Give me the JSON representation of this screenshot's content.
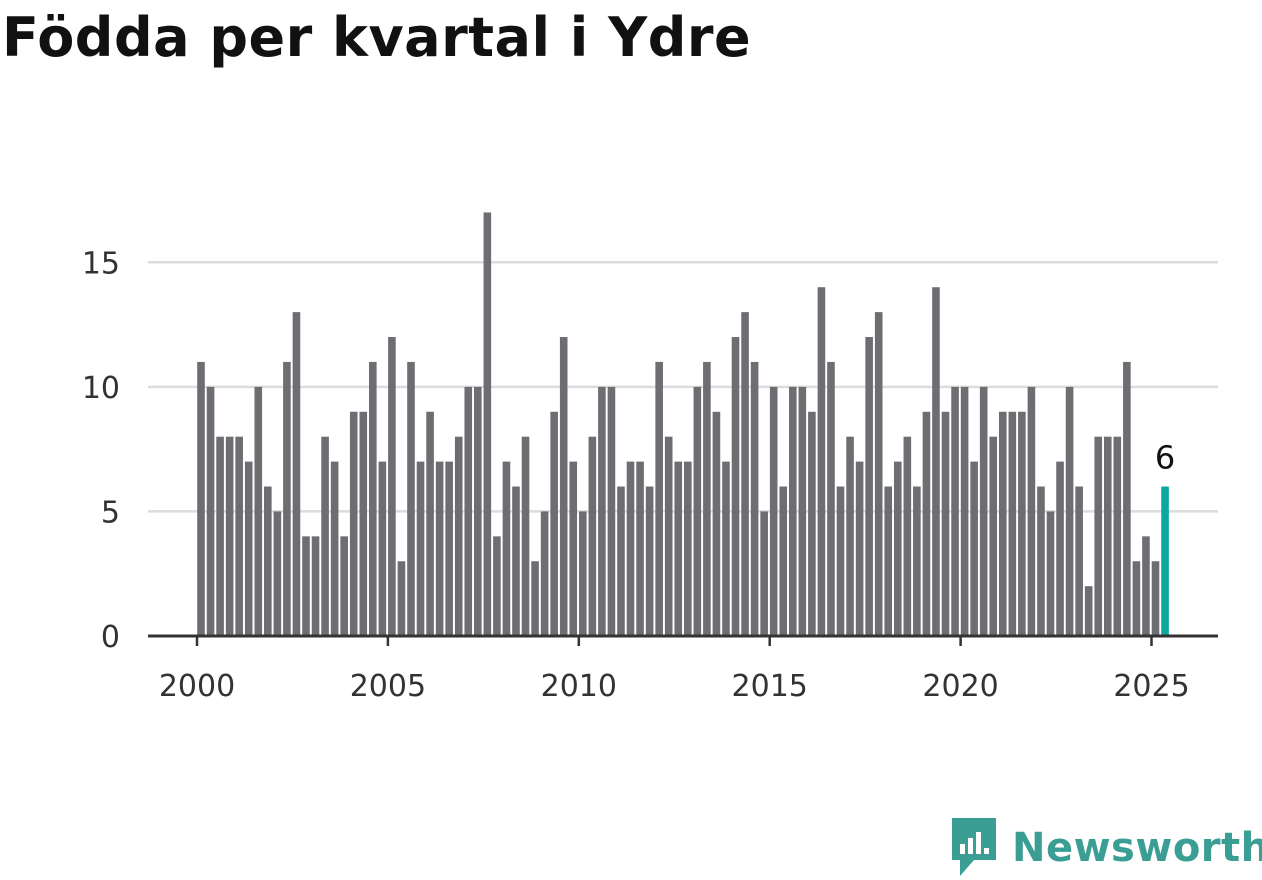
{
  "title": "Födda per kvartal i Ydre",
  "brand": {
    "name": "Newsworthy",
    "color": "#3a9e95"
  },
  "colors": {
    "bar": "#6e6d72",
    "highlight": "#0aa89e",
    "grid": "#dcdcdc",
    "axis": "#333333"
  },
  "chart_data": {
    "type": "bar",
    "title": "Födda per kvartal i Ydre",
    "xlabel": "",
    "ylabel": "",
    "ylim": [
      0,
      17.5
    ],
    "yticks": [
      0,
      5,
      10,
      15
    ],
    "xticks": [
      2000,
      2005,
      2010,
      2015,
      2020,
      2025
    ],
    "start": "2000 Q1",
    "end": "2025 Q2",
    "grid": true,
    "values": [
      11,
      10,
      8,
      8,
      8,
      7,
      10,
      6,
      5,
      11,
      13,
      4,
      4,
      8,
      7,
      4,
      9,
      9,
      11,
      7,
      12,
      3,
      11,
      7,
      9,
      7,
      7,
      8,
      10,
      10,
      17,
      4,
      7,
      6,
      8,
      3,
      5,
      9,
      12,
      7,
      5,
      8,
      10,
      10,
      6,
      7,
      7,
      6,
      11,
      8,
      7,
      7,
      10,
      11,
      9,
      7,
      12,
      13,
      11,
      5,
      10,
      6,
      10,
      10,
      9,
      14,
      11,
      6,
      8,
      7,
      12,
      13,
      6,
      7,
      8,
      6,
      9,
      14,
      9,
      10,
      10,
      7,
      10,
      8,
      9,
      9,
      9,
      10,
      6,
      5,
      7,
      10,
      6,
      2,
      8,
      8,
      8,
      11,
      3,
      4,
      3,
      6
    ],
    "highlight_last": true,
    "last_label": "6"
  }
}
